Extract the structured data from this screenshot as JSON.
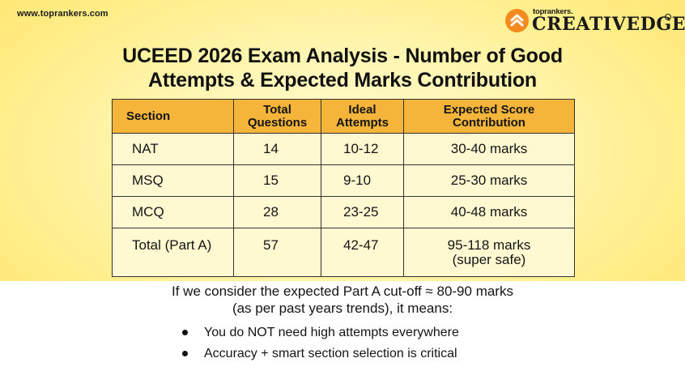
{
  "header": {
    "site_url": "www.toprankers.com",
    "brand_top": "toprankers.",
    "brand_main": "CREATIVEDGE",
    "brand_icon": "chevron-up-badge-icon",
    "brand_color": "#f58a1f"
  },
  "title": {
    "line1": "UCEED 2026 Exam Analysis - Number of Good",
    "line2": "Attempts & Expected Marks Contribution"
  },
  "table": {
    "header_color": "#f5b53a",
    "cell_color": "#fff9d2",
    "headers": [
      [
        "Section"
      ],
      [
        "Total",
        "Questions"
      ],
      [
        "Ideal",
        "Attempts"
      ],
      [
        "Expected Score",
        "Contribution"
      ]
    ],
    "rows": [
      [
        "NAT",
        "14",
        "10-12",
        "30-40 marks"
      ],
      [
        "MSQ",
        "15",
        "9-10",
        "25-30 marks"
      ],
      [
        "MCQ",
        "28",
        "23-25",
        "40-48 marks"
      ],
      [
        "Total (Part A)",
        "57",
        "42-47",
        "95-118 marks"
      ]
    ],
    "total_note": "(super safe)"
  },
  "consider": {
    "line1": "If we consider the expected Part A cut-off ≈ 80-90 marks",
    "line2": "(as per past years trends), it means:"
  },
  "bullets": [
    "You do NOT need high attempts everywhere",
    "Accuracy + smart section selection is critical"
  ]
}
